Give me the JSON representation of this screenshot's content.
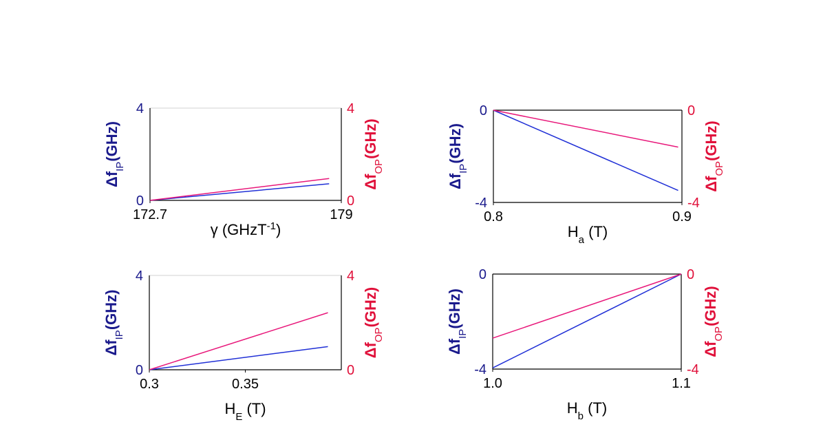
{
  "colors": {
    "ip": "#1a1a8c",
    "op": "#e0103a",
    "ip_line": "#1f2fd6",
    "op_line": "#e8177a",
    "axis": "#000000",
    "frame": "#d0d0d0"
  },
  "axis_labels": {
    "left_delta": "Δf",
    "left_sub": "IP",
    "left_unit": "(GHz)",
    "right_delta": "Δf",
    "right_sub": "OP",
    "right_unit": "(GHz)"
  },
  "panels": [
    {
      "id": "gamma",
      "xlabel": {
        "main": "γ (GHzT",
        "sup": "-1",
        "tail": ")"
      },
      "xlim": [
        172.7,
        179
      ],
      "xticks": [
        {
          "v": 172.7,
          "t": "172.7"
        },
        {
          "v": 179,
          "t": "179"
        }
      ],
      "ylim": [
        0,
        4
      ],
      "yticks_left": [
        {
          "v": 0,
          "t": "0"
        },
        {
          "v": 4,
          "t": "4"
        }
      ],
      "yticks_right": [
        {
          "v": 0,
          "t": "0"
        },
        {
          "v": 4,
          "t": "4"
        }
      ],
      "series": [
        {
          "name": "Δf_IP",
          "x": [
            172.7,
            178.6
          ],
          "y": [
            0,
            0.72
          ]
        },
        {
          "name": "Δf_OP",
          "x": [
            172.7,
            178.6
          ],
          "y": [
            0,
            0.95
          ]
        }
      ]
    },
    {
      "id": "Ha",
      "xlabel": {
        "main": "H",
        "sub": "a",
        "tail": " (T)"
      },
      "xlim": [
        0.8,
        0.9
      ],
      "xticks": [
        {
          "v": 0.8,
          "t": "0.8"
        },
        {
          "v": 0.9,
          "t": "0.9"
        }
      ],
      "ylim": [
        -4,
        0
      ],
      "yticks_left": [
        {
          "v": 0,
          "t": "0"
        },
        {
          "v": -4,
          "t": "-4"
        }
      ],
      "yticks_right": [
        {
          "v": 0,
          "t": "0"
        },
        {
          "v": -4,
          "t": "-4"
        }
      ],
      "series": [
        {
          "name": "Δf_IP",
          "x": [
            0.8,
            0.898
          ],
          "y": [
            0,
            -3.48
          ]
        },
        {
          "name": "Δf_OP",
          "x": [
            0.8,
            0.898
          ],
          "y": [
            0,
            -1.6
          ]
        }
      ]
    },
    {
      "id": "HE",
      "xlabel": {
        "main": "H",
        "sub": "E",
        "tail": " (T)"
      },
      "xlim": [
        0.3,
        0.4
      ],
      "xticks": [
        {
          "v": 0.3,
          "t": "0.3"
        },
        {
          "v": 0.35,
          "t": "0.35"
        }
      ],
      "ylim": [
        0,
        4
      ],
      "yticks_left": [
        {
          "v": 0,
          "t": "0"
        },
        {
          "v": 4,
          "t": "4"
        }
      ],
      "yticks_right": [
        {
          "v": 0,
          "t": "0"
        },
        {
          "v": 4,
          "t": "4"
        }
      ],
      "series": [
        {
          "name": "Δf_IP",
          "x": [
            0.3,
            0.393
          ],
          "y": [
            0,
            0.98
          ]
        },
        {
          "name": "Δf_OP",
          "x": [
            0.3,
            0.393
          ],
          "y": [
            0,
            2.42
          ]
        }
      ]
    },
    {
      "id": "Hb",
      "xlabel": {
        "main": "H",
        "sub": "b",
        "tail": " (T)"
      },
      "xlim": [
        1.0,
        1.1
      ],
      "xticks": [
        {
          "v": 1.0,
          "t": "1.0"
        },
        {
          "v": 1.1,
          "t": "1.1"
        }
      ],
      "ylim": [
        -4,
        0
      ],
      "yticks_left": [
        {
          "v": 0,
          "t": "0"
        },
        {
          "v": -4,
          "t": "-4"
        }
      ],
      "yticks_right": [
        {
          "v": 0,
          "t": "0"
        },
        {
          "v": -4,
          "t": "-4"
        }
      ],
      "series": [
        {
          "name": "Δf_IP",
          "x": [
            1.0,
            1.1
          ],
          "y": [
            -3.95,
            0
          ]
        },
        {
          "name": "Δf_OP",
          "x": [
            1.0,
            1.1
          ],
          "y": [
            -2.7,
            0
          ]
        }
      ]
    }
  ],
  "chart_data": [
    {
      "type": "line",
      "title": "",
      "xlabel": "γ (GHzT-1)",
      "ylabel": "ΔfIP(GHz)",
      "ylabel_right": "ΔfOP(GHz)",
      "xlim": [
        172.7,
        179
      ],
      "ylim": [
        0,
        4
      ],
      "series": [
        {
          "name": "Δf_IP",
          "x": [
            172.7,
            178.6
          ],
          "y": [
            0,
            0.72
          ]
        },
        {
          "name": "Δf_OP",
          "x": [
            172.7,
            178.6
          ],
          "y": [
            0,
            0.95
          ]
        }
      ]
    },
    {
      "type": "line",
      "title": "",
      "xlabel": "Ha (T)",
      "ylabel": "ΔfIP(GHz)",
      "ylabel_right": "ΔfOP(GHz)",
      "xlim": [
        0.8,
        0.9
      ],
      "ylim": [
        -4,
        0
      ],
      "series": [
        {
          "name": "Δf_IP",
          "x": [
            0.8,
            0.898
          ],
          "y": [
            0,
            -3.48
          ]
        },
        {
          "name": "Δf_OP",
          "x": [
            0.8,
            0.898
          ],
          "y": [
            0,
            -1.6
          ]
        }
      ]
    },
    {
      "type": "line",
      "title": "",
      "xlabel": "HE (T)",
      "ylabel": "ΔfIP(GHz)",
      "ylabel_right": "ΔfOP(GHz)",
      "xlim": [
        0.3,
        0.4
      ],
      "ylim": [
        0,
        4
      ],
      "series": [
        {
          "name": "Δf_IP",
          "x": [
            0.3,
            0.393
          ],
          "y": [
            0,
            0.98
          ]
        },
        {
          "name": "Δf_OP",
          "x": [
            0.3,
            0.393
          ],
          "y": [
            0,
            2.42
          ]
        }
      ]
    },
    {
      "type": "line",
      "title": "",
      "xlabel": "Hb (T)",
      "ylabel": "ΔfIP(GHz)",
      "ylabel_right": "ΔfOP(GHz)",
      "xlim": [
        1.0,
        1.1
      ],
      "ylim": [
        -4,
        0
      ],
      "series": [
        {
          "name": "Δf_IP",
          "x": [
            1.0,
            1.1
          ],
          "y": [
            -3.95,
            0
          ]
        },
        {
          "name": "Δf_OP",
          "x": [
            1.0,
            1.1
          ],
          "y": [
            -2.7,
            0
          ]
        }
      ]
    }
  ]
}
